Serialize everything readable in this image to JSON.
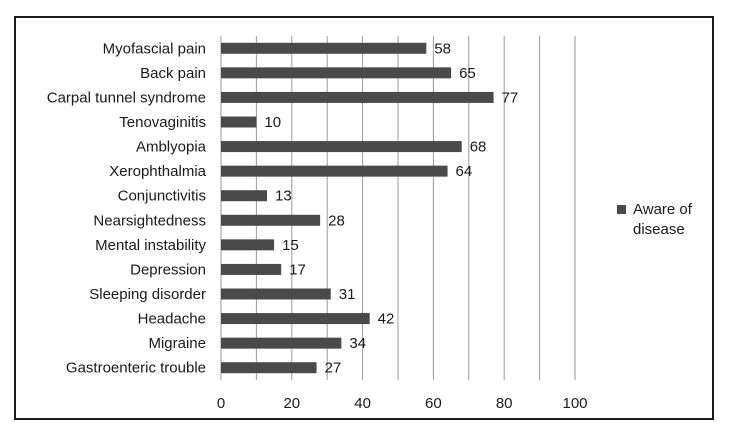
{
  "chart_data": {
    "type": "bar",
    "orientation": "horizontal",
    "title": "",
    "xlabel": "",
    "ylabel": "",
    "categories": [
      "Myofascial pain",
      "Back pain",
      "Carpal tunnel syndrome",
      "Tenovaginitis",
      "Amblyopia",
      "Xerophthalmia",
      "Conjunctivitis",
      "Nearsightedness",
      "Mental instability",
      "Depression",
      "Sleeping disorder",
      "Headache",
      "Migraine",
      "Gastroenteric trouble"
    ],
    "series": [
      {
        "name": "Aware of disease",
        "values": [
          58,
          65,
          77,
          10,
          68,
          64,
          13,
          28,
          15,
          17,
          31,
          42,
          34,
          27
        ]
      }
    ],
    "xlim": [
      0,
      100
    ],
    "xticks": [
      0,
      20,
      40,
      60,
      80,
      100
    ],
    "gridlines": [
      0,
      10,
      20,
      30,
      40,
      50,
      60,
      70,
      80,
      90,
      100
    ],
    "grid": true,
    "legend_position": "right",
    "legend_label_lines": [
      "Aware of",
      "disease"
    ],
    "bar_color": "#4a4a4a",
    "grid_color": "#9a9a9a"
  }
}
